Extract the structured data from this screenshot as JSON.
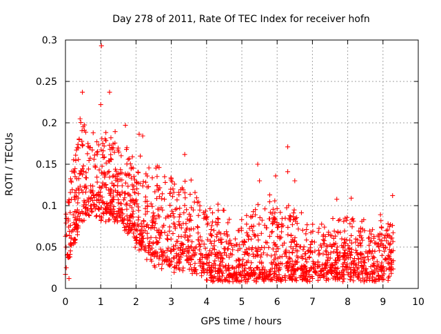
{
  "chart_data": {
    "type": "scatter",
    "title": "Day 278 of 2011, Rate Of TEC Index for receiver hofn",
    "xlabel": "GPS time / hours",
    "ylabel": "ROTI / TECUs",
    "xlim": [
      0,
      10
    ],
    "ylim": [
      0,
      0.3
    ],
    "x_ticks": [
      "0",
      "1",
      "2",
      "3",
      "4",
      "5",
      "6",
      "7",
      "8",
      "9",
      "10"
    ],
    "y_ticks": [
      "0",
      "0.05",
      "0.1",
      "0.15",
      "0.2",
      "0.25",
      "0.3"
    ],
    "grid": true,
    "marker": "+",
    "color": "#ff0000",
    "approx_point_count": 2000,
    "x_range_of_points": [
      0,
      9.3
    ],
    "envelope": [
      {
        "x": 0.0,
        "mean": 0.05,
        "spread": 0.04
      },
      {
        "x": 0.25,
        "mean": 0.09,
        "spread": 0.05
      },
      {
        "x": 0.5,
        "mean": 0.12,
        "spread": 0.06
      },
      {
        "x": 0.75,
        "mean": 0.125,
        "spread": 0.05
      },
      {
        "x": 1.0,
        "mean": 0.11,
        "spread": 0.05
      },
      {
        "x": 1.25,
        "mean": 0.115,
        "spread": 0.045
      },
      {
        "x": 1.5,
        "mean": 0.11,
        "spread": 0.045
      },
      {
        "x": 1.75,
        "mean": 0.1,
        "spread": 0.045
      },
      {
        "x": 2.0,
        "mean": 0.085,
        "spread": 0.05
      },
      {
        "x": 2.5,
        "mean": 0.065,
        "spread": 0.055
      },
      {
        "x": 3.0,
        "mean": 0.06,
        "spread": 0.055
      },
      {
        "x": 3.5,
        "mean": 0.055,
        "spread": 0.05
      },
      {
        "x": 4.0,
        "mean": 0.04,
        "spread": 0.04
      },
      {
        "x": 4.5,
        "mean": 0.03,
        "spread": 0.04
      },
      {
        "x": 5.0,
        "mean": 0.028,
        "spread": 0.035
      },
      {
        "x": 5.5,
        "mean": 0.035,
        "spread": 0.05
      },
      {
        "x": 6.0,
        "mean": 0.04,
        "spread": 0.045
      },
      {
        "x": 6.5,
        "mean": 0.035,
        "spread": 0.04
      },
      {
        "x": 7.0,
        "mean": 0.03,
        "spread": 0.03
      },
      {
        "x": 7.5,
        "mean": 0.03,
        "spread": 0.03
      },
      {
        "x": 8.0,
        "mean": 0.035,
        "spread": 0.035
      },
      {
        "x": 8.5,
        "mean": 0.03,
        "spread": 0.03
      },
      {
        "x": 9.0,
        "mean": 0.035,
        "spread": 0.035
      },
      {
        "x": 9.3,
        "mean": 0.04,
        "spread": 0.035
      }
    ],
    "notable_points": [
      {
        "x": 1.02,
        "y": 0.293
      },
      {
        "x": 0.48,
        "y": 0.237
      },
      {
        "x": 1.25,
        "y": 0.237
      },
      {
        "x": 1.0,
        "y": 0.222
      },
      {
        "x": 1.7,
        "y": 0.197
      },
      {
        "x": 6.3,
        "y": 0.171
      },
      {
        "x": 5.45,
        "y": 0.15
      },
      {
        "x": 6.3,
        "y": 0.141
      },
      {
        "x": 5.5,
        "y": 0.13
      },
      {
        "x": 6.5,
        "y": 0.13
      },
      {
        "x": 8.1,
        "y": 0.109
      },
      {
        "x": 0.0,
        "y": 0.017
      },
      {
        "x": 0.1,
        "y": 0.012
      }
    ]
  }
}
